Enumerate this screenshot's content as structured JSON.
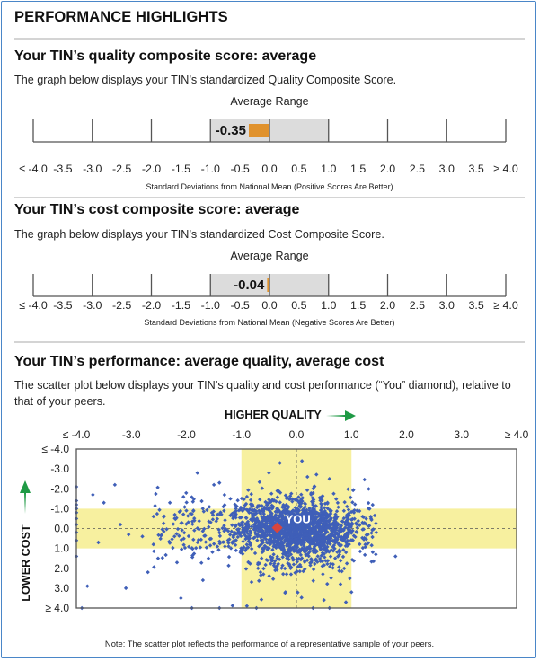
{
  "page": {
    "title": "PERFORMANCE HIGHLIGHTS"
  },
  "quality_section": {
    "heading": "Your TIN’s quality composite score: average",
    "description": "The graph below displays your TIN’s standardized Quality Composite Score.",
    "range_label": "Average Range",
    "axis_caption": "Standard Deviations from National Mean (Positive Scores Are Better)"
  },
  "cost_section": {
    "heading": "Your TIN’s cost composite score: average",
    "description": "The graph below displays your TIN’s standardized Cost Composite Score.",
    "range_label": "Average Range",
    "axis_caption": "Standard Deviations from National Mean (Negative Scores Are Better)"
  },
  "performance_section": {
    "heading": "Your TIN’s performance: average quality, average cost",
    "description": "The scatter plot below displays your TIN’s quality and cost performance (“You” diamond), relative to that of your peers.",
    "x_axis_title": "HIGHER QUALITY",
    "y_axis_title": "LOWER COST",
    "you_label": "YOU",
    "note": "Note: The scatter plot reflects the performance of a representative sample of your peers."
  },
  "colors": {
    "score_bar": "#e0922d",
    "average_band_gray": "#dcdcdc",
    "average_band_yellow": "#f7f09f",
    "peer_points": "#3f5fb8",
    "you_marker": "#d9453c",
    "arrow_green": "#1f9a45",
    "frame_border": "#4a86c8"
  },
  "chart_data": [
    {
      "type": "bar",
      "name": "quality-composite",
      "value": -0.35,
      "value_label": "-0.35",
      "average_range": [
        -1.0,
        1.0
      ],
      "xlim": [
        -4.0,
        4.0
      ],
      "major_ticks": [
        -4.0,
        -3.0,
        -2.0,
        -1.0,
        0.0,
        1.0,
        2.0,
        3.0,
        4.0
      ],
      "tick_labels": [
        "≤ -4.0",
        "-3.5",
        "-3.0",
        "-2.5",
        "-2.0",
        "-1.5",
        "-1.0",
        "-0.5",
        "0.0",
        "0.5",
        "1.0",
        "1.5",
        "2.0",
        "2.5",
        "3.0",
        "3.5",
        "≥ 4.0"
      ],
      "xlabel": "Standard Deviations from National Mean (Positive Scores Are Better)",
      "title": "Average Range"
    },
    {
      "type": "bar",
      "name": "cost-composite",
      "value": -0.04,
      "value_label": "-0.04",
      "average_range": [
        -1.0,
        1.0
      ],
      "xlim": [
        -4.0,
        4.0
      ],
      "major_ticks": [
        -4.0,
        -3.0,
        -2.0,
        -1.0,
        0.0,
        1.0,
        2.0,
        3.0,
        4.0
      ],
      "tick_labels": [
        "≤ -4.0",
        "-3.5",
        "-3.0",
        "-2.5",
        "-2.0",
        "-1.5",
        "-1.0",
        "-0.5",
        "0.0",
        "0.5",
        "1.0",
        "1.5",
        "2.0",
        "2.5",
        "3.0",
        "3.5",
        "≥ 4.0"
      ],
      "xlabel": "Standard Deviations from National Mean (Negative Scores Are Better)",
      "title": "Average Range"
    },
    {
      "type": "scatter",
      "name": "quality-vs-cost",
      "xlabel": "HIGHER QUALITY",
      "ylabel": "LOWER COST",
      "xlim": [
        -4.0,
        4.0
      ],
      "ylim": [
        -4.0,
        4.0
      ],
      "y_inverted": true,
      "x_ticks": [
        -4,
        -3,
        -2,
        -1,
        0,
        1,
        2,
        3,
        4
      ],
      "x_tick_labels": [
        "≤ -4.0",
        "-3.0",
        "-2.0",
        "-1.0",
        "0.0",
        "1.0",
        "2.0",
        "3.0",
        "≥ 4.0"
      ],
      "y_ticks": [
        -4,
        -3,
        -2,
        -1,
        0,
        1,
        2,
        3,
        4
      ],
      "y_tick_labels": [
        "≤ -4.0",
        "-3.0",
        "-2.0",
        "-1.0",
        "0.0",
        "1.0",
        "2.0",
        "3.0",
        "≥ 4.0"
      ],
      "average_band_x": [
        -1.0,
        1.0
      ],
      "average_band_y": [
        -1.0,
        1.0
      ],
      "reference_lines": {
        "x": 0.0,
        "y": 0.0
      },
      "you_point": {
        "x": -0.35,
        "y": -0.04,
        "label": "YOU"
      },
      "peer_distribution": {
        "approx_count": 2500,
        "center": [
          0.0,
          0.0
        ],
        "spread_x": 0.55,
        "spread_y": 0.6,
        "note": "dense cluster centered near (0,0) with outliers spanning full axis range; clipped points stacked at x=-4 and y=4 edges"
      },
      "peer_points_sample": [
        [
          -4.0,
          -2.1
        ],
        [
          -4.0,
          -1.4
        ],
        [
          -4.0,
          -1.2
        ],
        [
          -4.0,
          -1.0
        ],
        [
          -4.0,
          -0.8
        ],
        [
          -4.0,
          -0.5
        ],
        [
          -4.0,
          -0.2
        ],
        [
          -4.0,
          0.2
        ],
        [
          -4.0,
          0.6
        ],
        [
          -4.0,
          1.4
        ],
        [
          -3.7,
          -1.7
        ],
        [
          -3.5,
          -1.3
        ],
        [
          -3.3,
          -2.2
        ],
        [
          -3.2,
          -0.2
        ],
        [
          -3.05,
          0.3
        ],
        [
          -3.6,
          0.7
        ],
        [
          -2.8,
          0.4
        ],
        [
          -2.6,
          0.8
        ],
        [
          -2.3,
          -1.3
        ],
        [
          -2.7,
          2.2
        ],
        [
          -3.8,
          2.9
        ],
        [
          -3.1,
          3.0
        ],
        [
          -2.1,
          3.5
        ],
        [
          -2.0,
          -0.9
        ],
        [
          -1.8,
          -2.8
        ],
        [
          -1.5,
          -2.2
        ],
        [
          -1.4,
          -2.3
        ],
        [
          -1.2,
          -1.5
        ],
        [
          -1.1,
          -1.0
        ],
        [
          -1.3,
          0.9
        ],
        [
          -1.6,
          1.5
        ],
        [
          -1.7,
          2.6
        ],
        [
          -0.9,
          -1.6
        ],
        [
          -0.8,
          -1.2
        ],
        [
          -0.7,
          1.8
        ],
        [
          -0.6,
          2.3
        ],
        [
          -0.5,
          -2.8
        ],
        [
          -0.3,
          -3.3
        ],
        [
          0.1,
          -3.4
        ],
        [
          0.2,
          -2.6
        ],
        [
          0.6,
          -2.5
        ],
        [
          0.9,
          1.2
        ],
        [
          1.1,
          -0.9
        ],
        [
          1.2,
          -0.3
        ],
        [
          1.3,
          0.3
        ],
        [
          1.35,
          -0.6
        ],
        [
          1.25,
          0.8
        ],
        [
          1.45,
          0.2
        ],
        [
          1.8,
          1.4
        ],
        [
          0.8,
          2.8
        ],
        [
          -0.2,
          3.2
        ],
        [
          0.5,
          3.6
        ],
        [
          1.0,
          3.2
        ],
        [
          -0.9,
          3.9
        ],
        [
          0.3,
          4.0
        ],
        [
          -3.9,
          4.0
        ],
        [
          -1.9,
          4.0
        ],
        [
          -1.4,
          4.0
        ],
        [
          0.6,
          4.0
        ],
        [
          -0.1,
          1.3
        ]
      ]
    }
  ]
}
